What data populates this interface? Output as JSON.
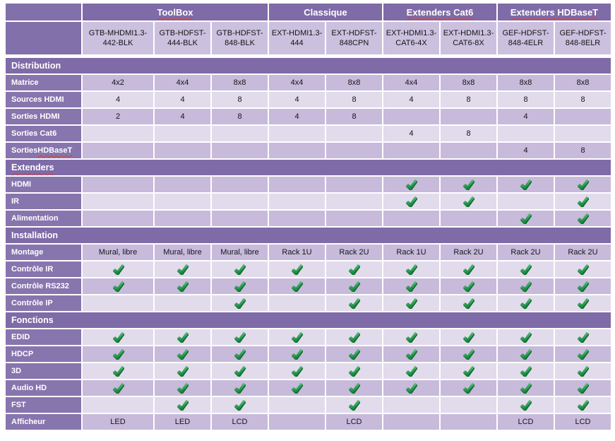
{
  "table": {
    "groups": [
      {
        "label": "ToolBox",
        "span": 3,
        "squiggle": true
      },
      {
        "label": "Classique",
        "span": 2,
        "squiggle": false
      },
      {
        "label": "Extenders Cat6",
        "span": 2,
        "squiggle": true
      },
      {
        "label": "Extenders HDBaseT",
        "span": 2,
        "squiggle": true
      }
    ],
    "products": [
      "GTB-MHDMI1.3-442-BLK",
      "GTB-HDFST-444-BLK",
      "GTB-HDFST-848-BLK",
      "EXT-HDMI1.3-444",
      "EXT-HDFST-848CPN",
      "EXT-HDMI1.3-CAT6-4X",
      "EXT-HDMI1.3-CAT6-8X",
      "GEF-HDFST-848-4ELR",
      "GEF-HDFST-848-8ELR"
    ],
    "sections": [
      {
        "title": "Distribution",
        "squiggle": false,
        "first_shade": "dark",
        "rows": [
          {
            "label": "Matrice",
            "cells": [
              "4x2",
              "4x4",
              "8x8",
              "4x4",
              "8x8",
              "4x4",
              "8x8",
              "8x8",
              "8x8"
            ]
          },
          {
            "label": "Sources HDMI",
            "cells": [
              "4",
              "4",
              "8",
              "4",
              "8",
              "4",
              "8",
              "8",
              "8"
            ]
          },
          {
            "label": "Sorties HDMI",
            "cells": [
              "2",
              "4",
              "8",
              "4",
              "8",
              "",
              "",
              "4",
              ""
            ]
          },
          {
            "label": "Sorties Cat6",
            "cells": [
              "",
              "",
              "",
              "",
              "",
              "4",
              "8",
              "",
              ""
            ]
          },
          {
            "label": "Sorties HDBaseT",
            "squiggle_part": "HDBaseT",
            "cells": [
              "",
              "",
              "",
              "",
              "",
              "",
              "",
              "4",
              "8"
            ]
          }
        ]
      },
      {
        "title": "Extenders",
        "squiggle": true,
        "first_shade": "dark",
        "rows": [
          {
            "label": "HDMI",
            "cells": [
              "",
              "",
              "",
              "",
              "",
              "check",
              "check",
              "check",
              "check"
            ]
          },
          {
            "label": "IR",
            "cells": [
              "",
              "",
              "",
              "",
              "",
              "check",
              "check",
              "",
              "check"
            ]
          },
          {
            "label": "Alimentation",
            "cells": [
              "",
              "",
              "",
              "",
              "",
              "",
              "",
              "check",
              "check"
            ]
          }
        ]
      },
      {
        "title": "Installation",
        "squiggle": false,
        "first_shade": "dark",
        "rows": [
          {
            "label": "Montage",
            "cells": [
              "Mural, libre",
              "Mural, libre",
              "Mural, libre",
              "Rack 1U",
              "Rack 2U",
              "Rack 1U",
              "Rack 2U",
              "Rack 2U",
              "Rack 2U"
            ]
          },
          {
            "label": "Contrôle IR",
            "cells": [
              "check",
              "check",
              "check",
              "check",
              "check",
              "check",
              "check",
              "check",
              "check"
            ]
          },
          {
            "label": "Contrôle RS232",
            "cells": [
              "check",
              "check",
              "check",
              "check",
              "check",
              "check",
              "check",
              "check",
              "check"
            ]
          },
          {
            "label": "Contrôle IP",
            "cells": [
              "",
              "",
              "check",
              "",
              "check",
              "check",
              "check",
              "check",
              "check"
            ]
          }
        ]
      },
      {
        "title": "Fonctions",
        "squiggle": false,
        "first_shade": "light",
        "rows": [
          {
            "label": "EDID",
            "cells": [
              "check",
              "check",
              "check",
              "check",
              "check",
              "check",
              "check",
              "check",
              "check"
            ]
          },
          {
            "label": "HDCP",
            "cells": [
              "check",
              "check",
              "check",
              "check",
              "check",
              "check",
              "check",
              "check",
              "check"
            ]
          },
          {
            "label": "3D",
            "cells": [
              "check",
              "check",
              "check",
              "check",
              "check",
              "check",
              "check",
              "check",
              "check"
            ]
          },
          {
            "label": "Audio HD",
            "cells": [
              "check",
              "check",
              "check",
              "check",
              "check",
              "check",
              "check",
              "check",
              "check"
            ]
          },
          {
            "label": "FST",
            "cells": [
              "",
              "check",
              "check",
              "",
              "check",
              "",
              "",
              "check",
              "check"
            ]
          },
          {
            "label": "Afficheur",
            "cells": [
              "LED",
              "LED",
              "LCD",
              "",
              "LCD",
              "",
              "",
              "LCD",
              "LCD"
            ]
          }
        ]
      }
    ],
    "colors": {
      "header_purple": "#7e6ba7",
      "corner_purple": "#8170aa",
      "label_purple": "#8775ae",
      "cell_dark": "#c7bada",
      "cell_light": "#e1dbec",
      "product_cell": "#cbc1df",
      "check_green_light": "#6fd190",
      "check_green_dark": "#128a3c",
      "check_outline": "#11632c",
      "squiggle_red": "#e23b2e"
    }
  }
}
